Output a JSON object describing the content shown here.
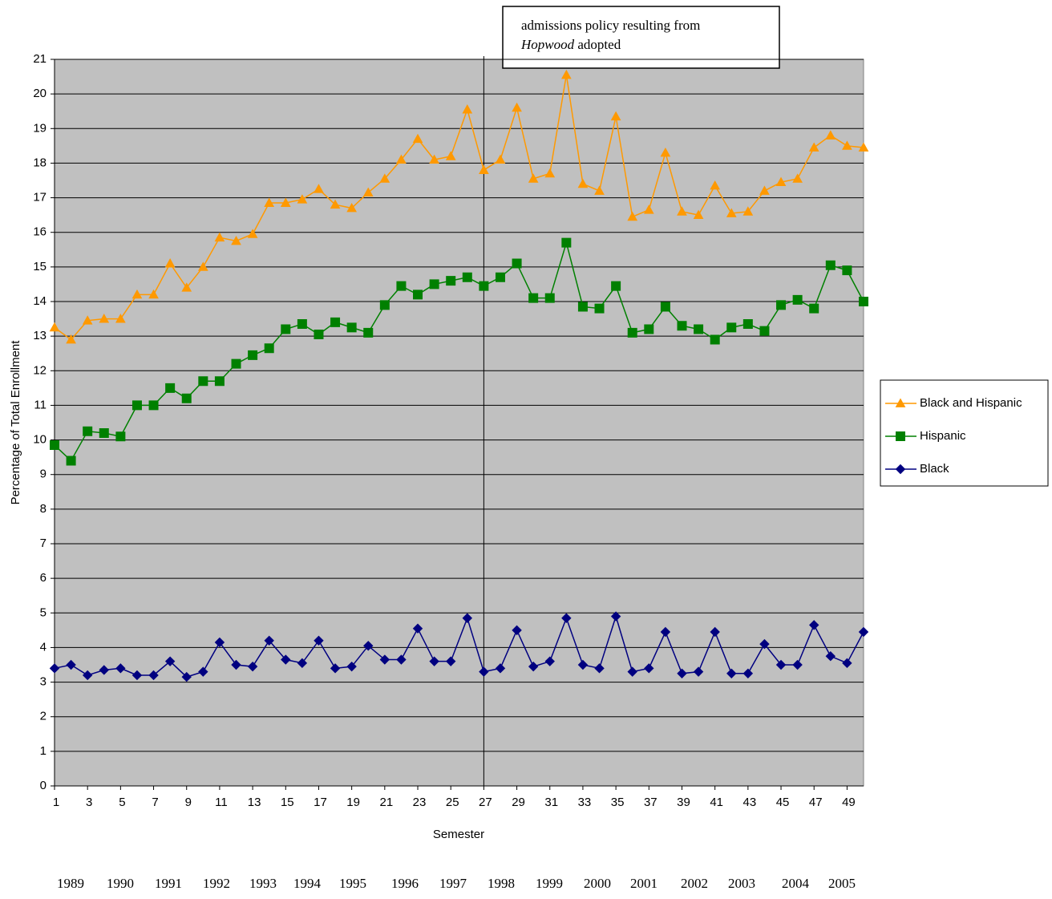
{
  "chart_data": {
    "type": "line",
    "y_label": "Percentage of Total Enrollment",
    "x_label": "Semester",
    "annotation": {
      "line1": "admissions policy resulting from",
      "italic": "Hopwood",
      "rest": " adopted",
      "x": 27
    },
    "year_labels": [
      "1989",
      "1990",
      "1991",
      "1992",
      "1993",
      "1994",
      "1995",
      "1996",
      "1997",
      "1998",
      "1999",
      "2000",
      "2001",
      "2002",
      "2003",
      "2004",
      "2005"
    ],
    "x": [
      1,
      2,
      3,
      4,
      5,
      6,
      7,
      8,
      9,
      10,
      11,
      12,
      13,
      14,
      15,
      16,
      17,
      18,
      19,
      20,
      21,
      22,
      23,
      24,
      25,
      26,
      27,
      28,
      29,
      30,
      31,
      32,
      33,
      34,
      35,
      36,
      37,
      38,
      39,
      40,
      41,
      42,
      43,
      44,
      45,
      46,
      47,
      48,
      49,
      50
    ],
    "xlim": [
      1,
      50
    ],
    "xticks": [
      1,
      3,
      5,
      7,
      9,
      11,
      13,
      15,
      17,
      19,
      21,
      23,
      25,
      27,
      29,
      31,
      33,
      35,
      37,
      39,
      41,
      43,
      45,
      47,
      49
    ],
    "ylim": [
      0,
      21
    ],
    "yticks": [
      0,
      1,
      2,
      3,
      4,
      5,
      6,
      7,
      8,
      9,
      10,
      11,
      12,
      13,
      14,
      15,
      16,
      17,
      18,
      19,
      20,
      21
    ],
    "grid": true,
    "legend": "right",
    "series": [
      {
        "name": "Black and Hispanic",
        "color": "#ff9900",
        "marker": "triangle",
        "values": [
          13.25,
          12.9,
          13.45,
          13.5,
          13.5,
          14.2,
          14.2,
          15.1,
          14.4,
          15.0,
          15.85,
          15.75,
          15.95,
          16.85,
          16.85,
          16.95,
          17.25,
          16.8,
          16.7,
          17.15,
          17.55,
          18.1,
          18.7,
          18.1,
          18.2,
          19.55,
          17.8,
          18.1,
          19.6,
          17.55,
          17.7,
          20.55,
          17.4,
          17.2,
          19.35,
          16.45,
          16.65,
          18.3,
          16.6,
          16.5,
          17.35,
          16.55,
          16.6,
          17.2,
          17.45,
          17.55,
          18.45,
          18.8,
          18.5,
          18.45
        ]
      },
      {
        "name": "Hispanic",
        "color": "#008000",
        "marker": "square",
        "values": [
          9.85,
          9.4,
          10.25,
          10.2,
          10.1,
          11.0,
          11.0,
          11.5,
          11.2,
          11.7,
          11.7,
          12.2,
          12.45,
          12.65,
          13.2,
          13.35,
          13.05,
          13.4,
          13.25,
          13.1,
          13.9,
          14.45,
          14.2,
          14.5,
          14.6,
          14.7,
          14.45,
          14.7,
          15.1,
          14.1,
          14.1,
          15.7,
          13.85,
          13.8,
          14.45,
          13.1,
          13.2,
          13.85,
          13.3,
          13.2,
          12.9,
          13.25,
          13.35,
          13.15,
          13.9,
          14.05,
          13.8,
          15.05,
          14.9,
          14.0
        ]
      },
      {
        "name": "Black",
        "color": "#000080",
        "marker": "diamond",
        "values": [
          3.4,
          3.5,
          3.2,
          3.35,
          3.4,
          3.2,
          3.2,
          3.6,
          3.15,
          3.3,
          4.15,
          3.5,
          3.45,
          4.2,
          3.65,
          3.55,
          4.2,
          3.4,
          3.45,
          4.05,
          3.65,
          3.65,
          4.55,
          3.6,
          3.6,
          4.85,
          3.3,
          3.4,
          4.5,
          3.45,
          3.6,
          4.85,
          3.5,
          3.4,
          4.9,
          3.3,
          3.4,
          4.45,
          3.25,
          3.3,
          4.45,
          3.25,
          3.25,
          4.1,
          3.5,
          3.5,
          4.65,
          3.75,
          3.55,
          4.45
        ]
      }
    ]
  }
}
